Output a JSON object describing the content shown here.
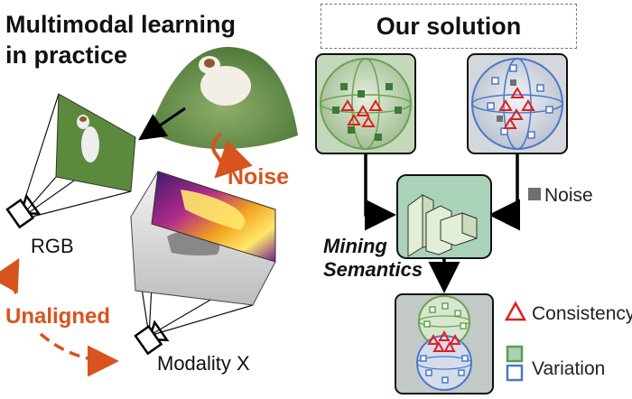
{
  "left": {
    "title": "Multimodal learning\nin practice",
    "noise_label": "Noise",
    "unaligned_label": "Unaligned",
    "rgb_label": "RGB",
    "modality_label": "Modality X"
  },
  "right": {
    "title": "Our solution",
    "mining_label": "Mining\nSemantics",
    "legend": {
      "noise": "Noise",
      "consistency": "Consistency",
      "variation": "Variation"
    }
  },
  "colors": {
    "orange": "#d9531e",
    "green": "#5e9e4a",
    "blue": "#4a78c9",
    "red": "#e02020",
    "gray": "#707070",
    "panel_green": "#a9d2b9"
  },
  "icons": [
    "camera-icon",
    "cube-icon",
    "triangle-icon",
    "square-icon",
    "arrow-icon"
  ]
}
